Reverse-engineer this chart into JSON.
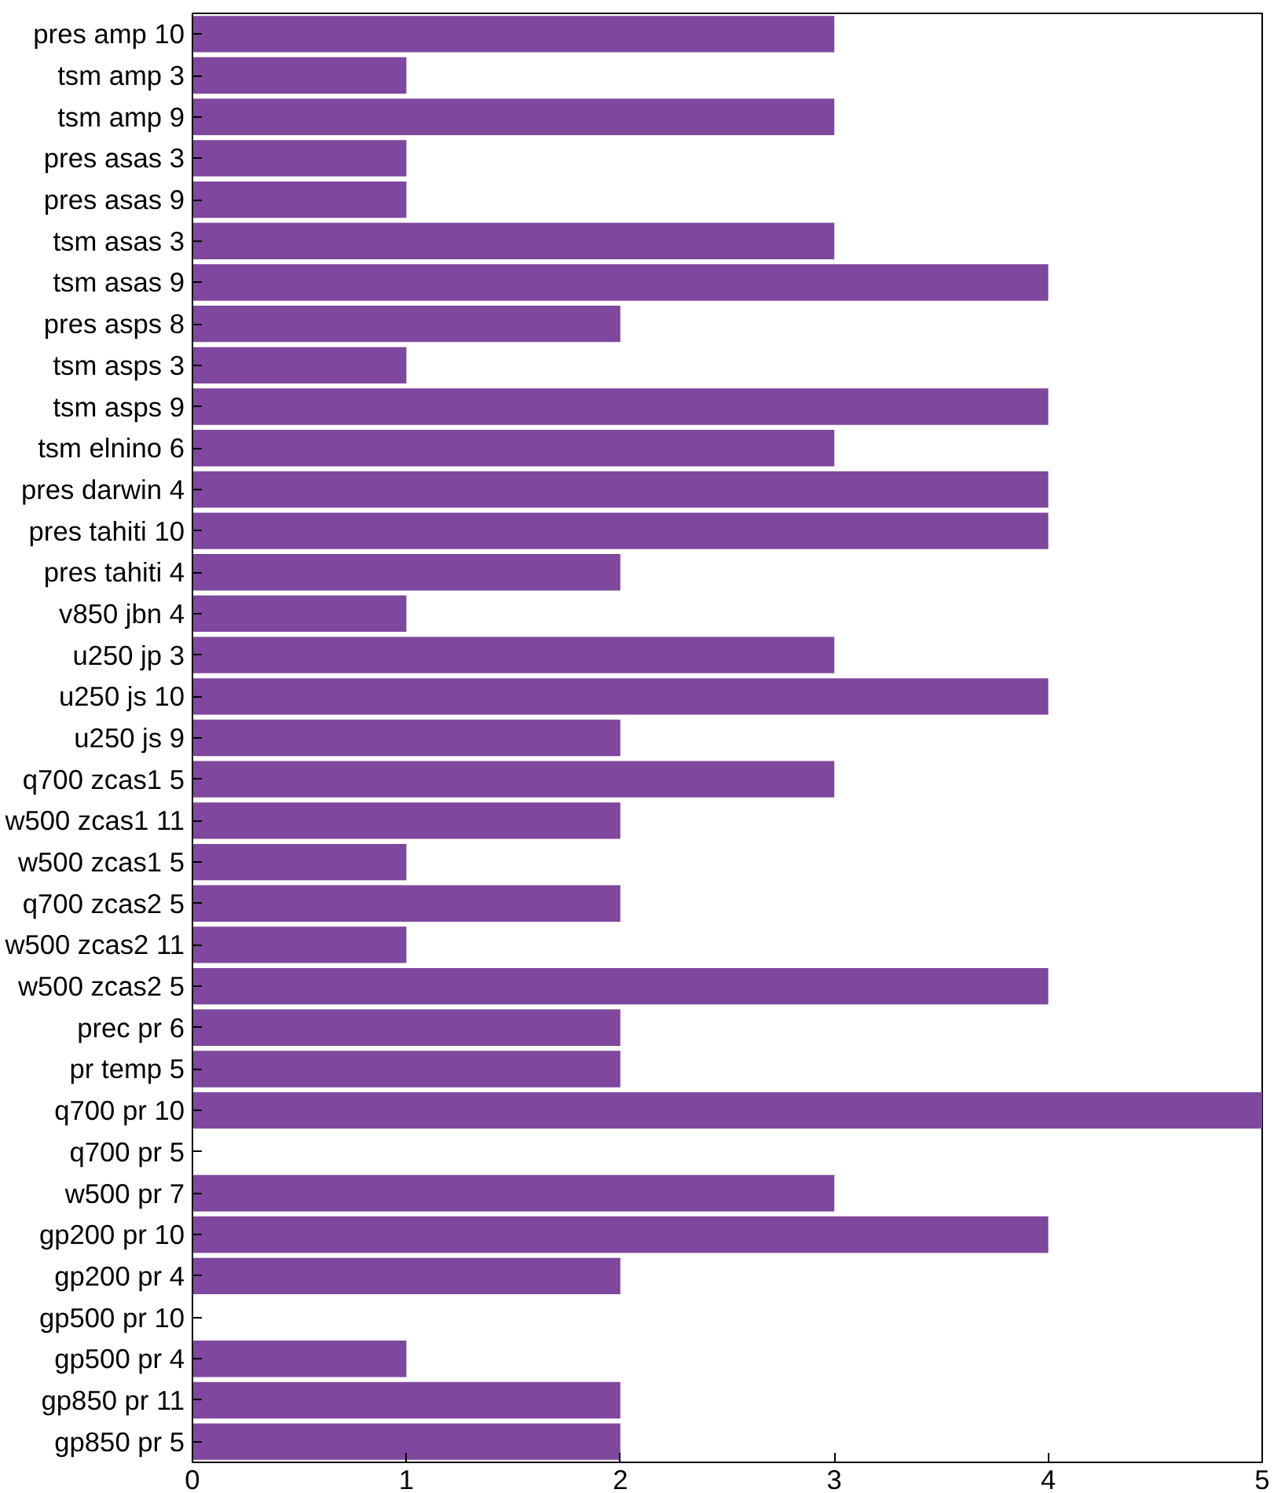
{
  "chart_data": {
    "type": "bar",
    "orientation": "horizontal",
    "categories": [
      "pres amp 10",
      "tsm amp 3",
      "tsm amp 9",
      "pres asas 3",
      "pres asas 9",
      "tsm asas 3",
      "tsm asas 9",
      "pres asps 8",
      "tsm asps 3",
      "tsm asps 9",
      "tsm elnino 6",
      "pres darwin 4",
      "pres tahiti 10",
      "pres tahiti 4",
      "v850 jbn 4",
      "u250 jp 3",
      "u250 js 10",
      "u250 js 9",
      "q700 zcas1 5",
      "w500 zcas1 11",
      "w500 zcas1 5",
      "q700 zcas2 5",
      "w500 zcas2 11",
      "w500 zcas2 5",
      "prec pr 6",
      "pr temp 5",
      "q700 pr 10",
      "q700 pr 5",
      "w500 pr 7",
      "gp200 pr 10",
      "gp200 pr 4",
      "gp500 pr 10",
      "gp500 pr 4",
      "gp850 pr 11",
      "gp850 pr 5"
    ],
    "values": [
      3,
      1,
      3,
      1,
      1,
      3,
      4,
      2,
      1,
      4,
      3,
      4,
      4,
      2,
      1,
      3,
      4,
      2,
      3,
      2,
      1,
      2,
      1,
      4,
      2,
      2,
      5,
      0,
      3,
      4,
      2,
      0,
      1,
      2,
      2
    ],
    "color": "#7f479d",
    "xlim": [
      0,
      5
    ],
    "xticks": [
      0,
      1,
      2,
      3,
      4,
      5
    ],
    "grid": false
  }
}
